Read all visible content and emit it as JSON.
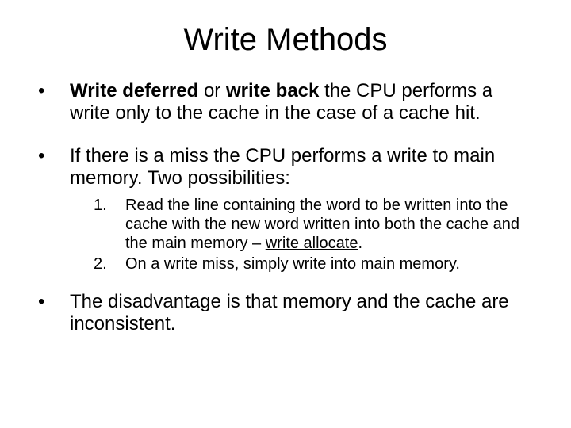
{
  "slide": {
    "title": "Write Methods",
    "background_color": "#ffffff",
    "text_color": "#000000",
    "title_fontsize": 40,
    "body_fontsize": 24,
    "sub_fontsize": 20,
    "bullets": [
      {
        "mark": "•",
        "runs": [
          {
            "text": "Write deferred",
            "bold": true
          },
          {
            "text": " or "
          },
          {
            "text": "write back",
            "bold": true
          },
          {
            "text": " the CPU performs a write only to the cache in the case of a cache hit."
          }
        ]
      },
      {
        "mark": "•",
        "runs": [
          {
            "text": "If there is a miss the CPU performs a write to main memory. Two possibilities:"
          }
        ]
      }
    ],
    "sub_items": [
      {
        "num": "1.",
        "runs": [
          {
            "text": "Read the line containing the word to be written into the cache with the new word written into  both the cache and the main memory – "
          },
          {
            "text": "write allocate",
            "underline": true
          },
          {
            "text": "."
          }
        ]
      },
      {
        "num": "2.",
        "runs": [
          {
            "text": "On a write miss, simply write into main memory."
          }
        ]
      }
    ],
    "bullets_after": [
      {
        "mark": "•",
        "runs": [
          {
            "text": "The disadvantage is that memory and the cache are inconsistent."
          }
        ]
      }
    ]
  }
}
